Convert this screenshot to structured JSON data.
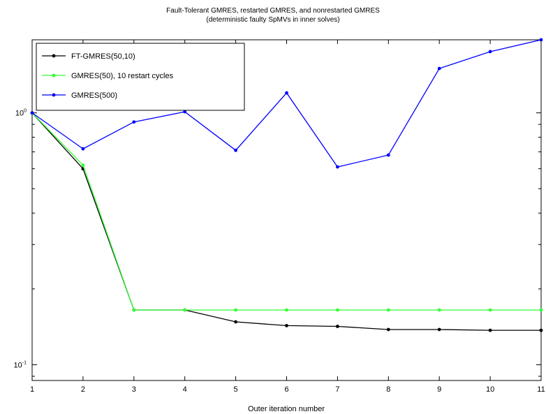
{
  "chart_data": {
    "type": "line",
    "title": "Fault-Tolerant GMRES, restarted GMRES, and nonrestarted GMRES",
    "subtitle": "(deterministic faulty SpMVs in inner solves)",
    "xlabel": "Outer iteration number",
    "ylabel": "",
    "xlim": [
      1,
      11
    ],
    "ylim": [
      0.0866,
      1.95
    ],
    "yscale": "log",
    "grid": false,
    "legend_position": "top-left",
    "x": [
      1,
      2,
      3,
      4,
      5,
      6,
      7,
      8,
      9,
      10,
      11
    ],
    "x_ticks": [
      "1",
      "2",
      "3",
      "4",
      "5",
      "6",
      "7",
      "8",
      "9",
      "10",
      "11"
    ],
    "y_ticks": [
      {
        "value": 1,
        "base": "10",
        "exp": "0"
      },
      {
        "value": 0.1,
        "base": "10",
        "exp": "-1"
      }
    ],
    "series": [
      {
        "name": "FT-GMRES(50,10)",
        "color": "#000000",
        "values": [
          1.0,
          0.6,
          0.165,
          0.165,
          0.148,
          0.143,
          0.142,
          0.138,
          0.138,
          0.137,
          0.137
        ]
      },
      {
        "name": "GMRES(50), 10 restart cycles",
        "color": "#33ff33",
        "values": [
          1.0,
          0.62,
          0.165,
          0.165,
          0.165,
          0.165,
          0.165,
          0.165,
          0.165,
          0.165,
          0.165
        ]
      },
      {
        "name": "GMRES(500)",
        "color": "#0000ff",
        "values": [
          1.0,
          0.72,
          0.92,
          1.01,
          0.71,
          1.2,
          0.61,
          0.68,
          1.5,
          1.75,
          1.95
        ]
      }
    ]
  }
}
